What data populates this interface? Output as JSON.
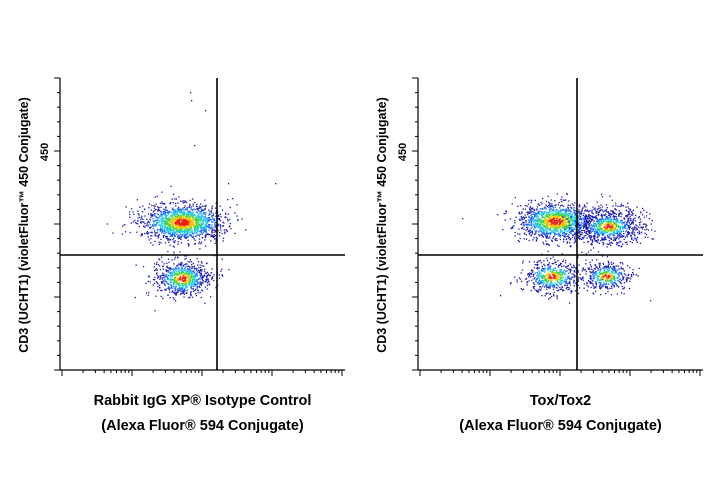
{
  "panels": [
    {
      "y_label": "CD3 (UCHT1) (violetFluor™ 450 Conjugate)",
      "y_tick_label": "450",
      "x_label": [
        "Rabbit IgG XP® Isotype Control",
        "(Alexa Fluor® 594 Conjugate)"
      ]
    },
    {
      "y_label": "CD3 (UCHT1) (violetFluor™ 450 Conjugate)",
      "y_tick_label": "450",
      "x_label": [
        "Tox/Tox2",
        "(Alexa Fluor® 594 Conjugate)"
      ]
    }
  ]
}
